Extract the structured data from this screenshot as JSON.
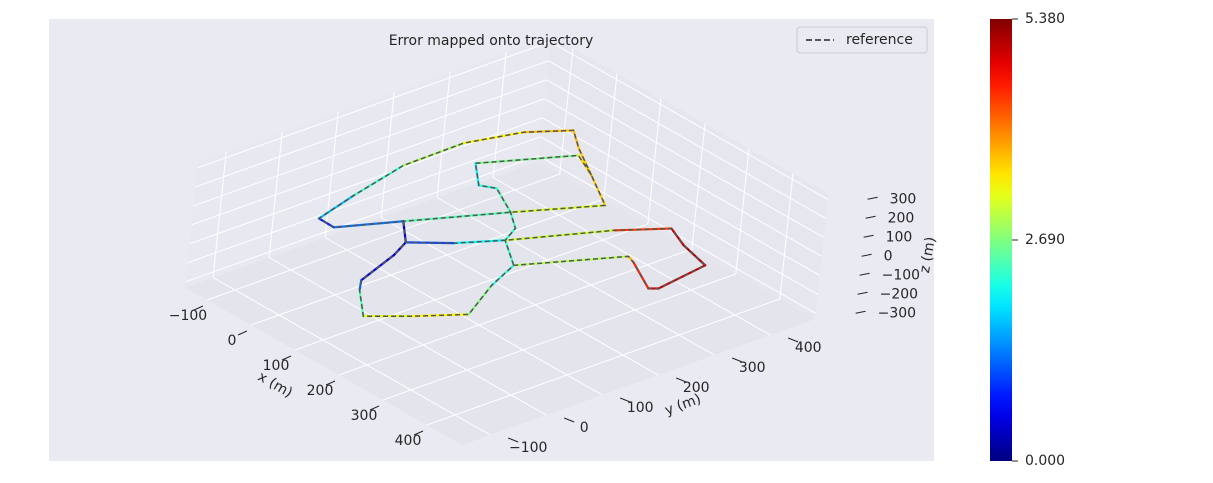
{
  "chart_data": {
    "type": "trajectory3d",
    "title": "Error mapped onto trajectory",
    "xlabel": "x (m)",
    "ylabel": "y (m)",
    "zlabel": "z (m)",
    "xlim": [
      -150,
      480
    ],
    "ylim": [
      -150,
      480
    ],
    "zlim": [
      -330,
      330
    ],
    "xticks": [
      {
        "value": -100,
        "label": "−100"
      },
      0,
      100,
      200,
      300,
      400
    ],
    "yticks": [
      {
        "value": -100,
        "label": "−100"
      },
      0,
      100,
      200,
      300,
      400
    ],
    "zticks": [
      {
        "value": -300,
        "label": "−300"
      },
      {
        "value": -200,
        "label": "−200"
      },
      {
        "value": -100,
        "label": "−100"
      },
      0,
      100,
      200,
      300
    ],
    "grid": true,
    "legend": "upper right",
    "series": [
      {
        "name": "reference",
        "color": "#555555",
        "dashed": true,
        "x": [
          -52,
          19,
          79,
          165,
          99,
          27,
          -19,
          -54,
          -80,
          -110,
          -112,
          -86,
          -47,
          2,
          79,
          null,
          27,
          81,
          102,
          135,
          158,
          225,
          269,
          313,
          262,
          232,
          311,
          330,
          407,
          416,
          400,
          332,
          280,
          234,
          163,
          125,
          81,
          null,
          232,
          163,
          143,
          99,
          28,
          5,
          -52
        ],
        "y": [
          280,
          408,
          384,
          341,
          224,
          89,
          1,
          2,
          85,
          197,
          306,
          393,
          451,
          422,
          384,
          null,
          89,
          51,
          13,
          -71,
          -92,
          -138,
          -83,
          -19,
          62,
          125,
          268,
          262,
          228,
          239,
          335,
          350,
          369,
          302,
          164,
          102,
          51,
          null,
          125,
          164,
          198,
          224,
          255,
          241,
          280
        ],
        "z": [
          0,
          0,
          0,
          0,
          0,
          0,
          0,
          0,
          0,
          0,
          0,
          0,
          0,
          0,
          0,
          null,
          0,
          0,
          0,
          0,
          0,
          0,
          0,
          0,
          0,
          0,
          0,
          0,
          0,
          0,
          0,
          0,
          0,
          0,
          0,
          0,
          0,
          null,
          0,
          0,
          0,
          0,
          0,
          0,
          0
        ],
        "error": [
          1.9,
          3.4,
          3.6,
          3.7,
          2.6,
          2.3,
          0.3,
          1.4,
          2.0,
          2.6,
          3.2,
          3.6,
          3.8,
          3.7,
          3.6,
          null,
          0.4,
          0.3,
          0.4,
          0.5,
          1.9,
          3.0,
          3.4,
          3.4,
          2.0,
          2.4,
          3.5,
          4.0,
          5.0,
          4.8,
          5.2,
          5.0,
          5.0,
          3.8,
          2.4,
          1.6,
          0.5,
          null,
          2.3,
          2.3,
          2.2,
          2.5,
          2.4,
          2.0,
          1.9
        ]
      }
    ],
    "colorbar": {
      "colormap": "jet",
      "lim": [
        0,
        5.38
      ],
      "ticks": [
        {
          "value": 0,
          "label": "0.000"
        },
        {
          "value": 2.69,
          "label": "2.690"
        },
        {
          "value": 5.38,
          "label": "5.380"
        }
      ]
    }
  }
}
